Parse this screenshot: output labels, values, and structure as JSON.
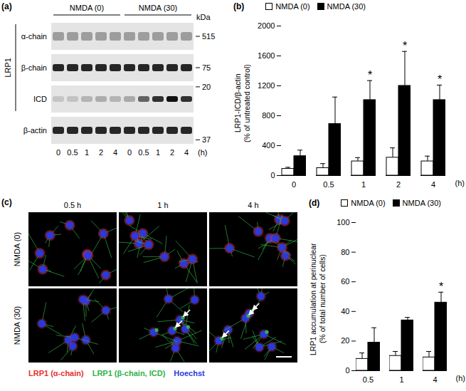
{
  "chart_data": [
    {
      "type": "bar",
      "title": "(b)",
      "categories": [
        "0",
        "0.5",
        "1",
        "2",
        "4"
      ],
      "xlabel": "(h)",
      "ylabel": "LRP1-ICD/β-actin\n(% of untreated control)",
      "ylim": [
        0,
        2000
      ],
      "yticks": [
        0,
        400,
        800,
        1200,
        1600,
        2000
      ],
      "grid": false,
      "legend": "top-left",
      "series": [
        {
          "name": "NMDA (0)",
          "color": "#ffffff",
          "values": [
            90,
            100,
            190,
            240,
            190
          ],
          "errors": [
            20,
            60,
            50,
            130,
            70
          ]
        },
        {
          "name": "NMDA (30)",
          "color": "#000000",
          "values": [
            260,
            690,
            1010,
            1200,
            1010
          ],
          "errors": [
            80,
            360,
            260,
            460,
            200
          ],
          "significance": [
            null,
            null,
            "*",
            "*",
            "*"
          ]
        }
      ]
    },
    {
      "type": "bar",
      "title": "(d)",
      "categories": [
        "0.5",
        "1",
        "4"
      ],
      "xlabel": "(h)",
      "ylabel": "LRP1 accumulation at perinuclear\n(% of total number of cells)",
      "ylim": [
        0,
        100
      ],
      "yticks": [
        0,
        20,
        40,
        60,
        80,
        100
      ],
      "grid": false,
      "legend": "top-left",
      "series": [
        {
          "name": "NMDA (0)",
          "color": "#ffffff",
          "values": [
            8,
            10,
            9
          ],
          "errors": [
            4,
            3,
            4
          ]
        },
        {
          "name": "NMDA (30)",
          "color": "#000000",
          "values": [
            19,
            34,
            46
          ],
          "errors": [
            10,
            2,
            7
          ],
          "significance": [
            null,
            null,
            "*"
          ]
        }
      ]
    }
  ],
  "blot": {
    "title": "(a)",
    "groups": [
      "NMDA (0)",
      "NMDA (30)"
    ],
    "lanes": [
      "0",
      "0.5",
      "1",
      "2",
      "4"
    ],
    "time_unit": "(h)",
    "protein": "LRP1",
    "rows": [
      "α-chain",
      "β-chain",
      "ICD",
      "β-actin"
    ],
    "unit": "kDa",
    "markers": [
      515,
      75,
      20,
      37
    ]
  },
  "micrographs": {
    "title": "(c)",
    "columns": [
      "0.5 h",
      "1 h",
      "4 h"
    ],
    "rows": [
      "NMDA (0)",
      "NMDA (30)"
    ],
    "legend": [
      {
        "text": "LRP1 (α-chain)",
        "color": "#e8312f"
      },
      {
        "text": "LRP1 (β-chain, ICD)",
        "color": "#2fb34a"
      },
      {
        "text": "Hoechst",
        "color": "#2a3ae0"
      }
    ]
  }
}
